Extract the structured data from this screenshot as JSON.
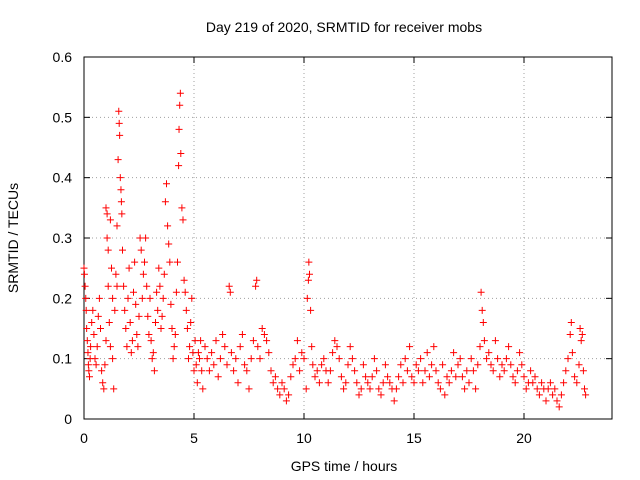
{
  "chart_data": {
    "type": "scatter",
    "title": "Day 219 of 2020, SRMTID for receiver mobs",
    "xlabel": "GPS time / hours",
    "ylabel": "SRMTID / TECUs",
    "xlim": [
      0,
      24
    ],
    "ylim": [
      0,
      0.6
    ],
    "x_ticks": [
      0,
      5,
      10,
      15,
      20
    ],
    "y_ticks": [
      0,
      0.1,
      0.2,
      0.3,
      0.4,
      0.5,
      0.6
    ],
    "x_tick_labels": [
      "0",
      "5",
      "10",
      "15",
      "20"
    ],
    "y_tick_labels": [
      "0",
      "0.1",
      "0.2",
      "0.3",
      "0.4",
      "0.5",
      "0.6"
    ],
    "grid": true,
    "marker": "+",
    "color": "#ff0000",
    "series": [
      {
        "name": "SRMTID",
        "points": [
          [
            0.0,
            0.25
          ],
          [
            0.02,
            0.24
          ],
          [
            0.05,
            0.22
          ],
          [
            0.08,
            0.2
          ],
          [
            0.1,
            0.18
          ],
          [
            0.12,
            0.15
          ],
          [
            0.15,
            0.13
          ],
          [
            0.18,
            0.11
          ],
          [
            0.2,
            0.09
          ],
          [
            0.22,
            0.08
          ],
          [
            0.25,
            0.07
          ],
          [
            0.28,
            0.1
          ],
          [
            0.3,
            0.12
          ],
          [
            0.35,
            0.16
          ],
          [
            0.4,
            0.18
          ],
          [
            0.45,
            0.14
          ],
          [
            0.5,
            0.1
          ],
          [
            0.55,
            0.09
          ],
          [
            0.6,
            0.12
          ],
          [
            0.65,
            0.17
          ],
          [
            0.7,
            0.2
          ],
          [
            0.75,
            0.15
          ],
          [
            0.8,
            0.08
          ],
          [
            0.85,
            0.06
          ],
          [
            0.9,
            0.05
          ],
          [
            0.95,
            0.09
          ],
          [
            1.0,
            0.13
          ],
          [
            1.0,
            0.35
          ],
          [
            1.05,
            0.34
          ],
          [
            1.05,
            0.3
          ],
          [
            1.1,
            0.28
          ],
          [
            1.1,
            0.22
          ],
          [
            1.15,
            0.16
          ],
          [
            1.2,
            0.12
          ],
          [
            1.2,
            0.33
          ],
          [
            1.25,
            0.25
          ],
          [
            1.3,
            0.2
          ],
          [
            1.3,
            0.1
          ],
          [
            1.35,
            0.05
          ],
          [
            1.4,
            0.18
          ],
          [
            1.45,
            0.24
          ],
          [
            1.5,
            0.32
          ],
          [
            1.5,
            0.22
          ],
          [
            1.55,
            0.43
          ],
          [
            1.58,
            0.51
          ],
          [
            1.6,
            0.49
          ],
          [
            1.62,
            0.47
          ],
          [
            1.65,
            0.4
          ],
          [
            1.68,
            0.38
          ],
          [
            1.7,
            0.36
          ],
          [
            1.72,
            0.34
          ],
          [
            1.75,
            0.28
          ],
          [
            1.8,
            0.22
          ],
          [
            1.85,
            0.18
          ],
          [
            1.9,
            0.15
          ],
          [
            1.95,
            0.12
          ],
          [
            2.0,
            0.2
          ],
          [
            2.05,
            0.25
          ],
          [
            2.1,
            0.16
          ],
          [
            2.15,
            0.11
          ],
          [
            2.2,
            0.13
          ],
          [
            2.25,
            0.21
          ],
          [
            2.3,
            0.26
          ],
          [
            2.35,
            0.19
          ],
          [
            2.4,
            0.14
          ],
          [
            2.45,
            0.12
          ],
          [
            2.5,
            0.17
          ],
          [
            2.55,
            0.3
          ],
          [
            2.6,
            0.28
          ],
          [
            2.65,
            0.2
          ],
          [
            2.7,
            0.24
          ],
          [
            2.75,
            0.26
          ],
          [
            2.8,
            0.3
          ],
          [
            2.85,
            0.22
          ],
          [
            2.9,
            0.17
          ],
          [
            2.95,
            0.14
          ],
          [
            3.0,
            0.2
          ],
          [
            3.05,
            0.13
          ],
          [
            3.1,
            0.1
          ],
          [
            3.15,
            0.11
          ],
          [
            3.2,
            0.08
          ],
          [
            3.25,
            0.16
          ],
          [
            3.3,
            0.21
          ],
          [
            3.35,
            0.18
          ],
          [
            3.4,
            0.25
          ],
          [
            3.45,
            0.22
          ],
          [
            3.5,
            0.15
          ],
          [
            3.55,
            0.17
          ],
          [
            3.6,
            0.2
          ],
          [
            3.65,
            0.24
          ],
          [
            3.7,
            0.36
          ],
          [
            3.75,
            0.39
          ],
          [
            3.8,
            0.32
          ],
          [
            3.85,
            0.29
          ],
          [
            3.9,
            0.26
          ],
          [
            3.95,
            0.19
          ],
          [
            4.0,
            0.15
          ],
          [
            4.05,
            0.1
          ],
          [
            4.1,
            0.12
          ],
          [
            4.15,
            0.14
          ],
          [
            4.2,
            0.21
          ],
          [
            4.25,
            0.26
          ],
          [
            4.3,
            0.42
          ],
          [
            4.32,
            0.48
          ],
          [
            4.35,
            0.52
          ],
          [
            4.38,
            0.54
          ],
          [
            4.4,
            0.44
          ],
          [
            4.45,
            0.35
          ],
          [
            4.5,
            0.33
          ],
          [
            4.55,
            0.23
          ],
          [
            4.6,
            0.21
          ],
          [
            4.65,
            0.18
          ],
          [
            4.7,
            0.15
          ],
          [
            4.75,
            0.1
          ],
          [
            4.8,
            0.12
          ],
          [
            4.85,
            0.16
          ],
          [
            4.9,
            0.2
          ],
          [
            4.95,
            0.11
          ],
          [
            5.0,
            0.08
          ],
          [
            5.05,
            0.13
          ],
          [
            5.1,
            0.09
          ],
          [
            5.15,
            0.06
          ],
          [
            5.2,
            0.11
          ],
          [
            5.25,
            0.1
          ],
          [
            5.3,
            0.13
          ],
          [
            5.35,
            0.08
          ],
          [
            5.4,
            0.05
          ],
          [
            5.5,
            0.12
          ],
          [
            5.6,
            0.1
          ],
          [
            5.7,
            0.08
          ],
          [
            5.8,
            0.11
          ],
          [
            5.9,
            0.09
          ],
          [
            6.0,
            0.13
          ],
          [
            6.1,
            0.07
          ],
          [
            6.2,
            0.1
          ],
          [
            6.3,
            0.14
          ],
          [
            6.4,
            0.12
          ],
          [
            6.5,
            0.09
          ],
          [
            6.6,
            0.22
          ],
          [
            6.65,
            0.21
          ],
          [
            6.7,
            0.11
          ],
          [
            6.8,
            0.08
          ],
          [
            6.9,
            0.1
          ],
          [
            7.0,
            0.06
          ],
          [
            7.1,
            0.12
          ],
          [
            7.2,
            0.14
          ],
          [
            7.3,
            0.09
          ],
          [
            7.4,
            0.08
          ],
          [
            7.5,
            0.05
          ],
          [
            7.6,
            0.1
          ],
          [
            7.7,
            0.13
          ],
          [
            7.8,
            0.22
          ],
          [
            7.85,
            0.23
          ],
          [
            7.9,
            0.12
          ],
          [
            8.0,
            0.1
          ],
          [
            8.1,
            0.15
          ],
          [
            8.2,
            0.14
          ],
          [
            8.3,
            0.13
          ],
          [
            8.4,
            0.11
          ],
          [
            8.5,
            0.08
          ],
          [
            8.6,
            0.06
          ],
          [
            8.7,
            0.07
          ],
          [
            8.8,
            0.05
          ],
          [
            8.9,
            0.04
          ],
          [
            9.0,
            0.06
          ],
          [
            9.1,
            0.05
          ],
          [
            9.2,
            0.03
          ],
          [
            9.3,
            0.04
          ],
          [
            9.4,
            0.07
          ],
          [
            9.5,
            0.09
          ],
          [
            9.6,
            0.1
          ],
          [
            9.7,
            0.13
          ],
          [
            9.8,
            0.08
          ],
          [
            9.9,
            0.11
          ],
          [
            10.0,
            0.1
          ],
          [
            10.1,
            0.05
          ],
          [
            10.15,
            0.2
          ],
          [
            10.2,
            0.23
          ],
          [
            10.22,
            0.26
          ],
          [
            10.25,
            0.24
          ],
          [
            10.3,
            0.18
          ],
          [
            10.35,
            0.12
          ],
          [
            10.4,
            0.09
          ],
          [
            10.5,
            0.07
          ],
          [
            10.6,
            0.08
          ],
          [
            10.7,
            0.06
          ],
          [
            10.8,
            0.09
          ],
          [
            10.9,
            0.1
          ],
          [
            11.0,
            0.08
          ],
          [
            11.1,
            0.06
          ],
          [
            11.2,
            0.08
          ],
          [
            11.3,
            0.11
          ],
          [
            11.4,
            0.13
          ],
          [
            11.5,
            0.12
          ],
          [
            11.6,
            0.1
          ],
          [
            11.7,
            0.07
          ],
          [
            11.8,
            0.05
          ],
          [
            11.9,
            0.06
          ],
          [
            12.0,
            0.09
          ],
          [
            12.1,
            0.12
          ],
          [
            12.2,
            0.1
          ],
          [
            12.3,
            0.08
          ],
          [
            12.4,
            0.06
          ],
          [
            12.5,
            0.04
          ],
          [
            12.6,
            0.05
          ],
          [
            12.7,
            0.09
          ],
          [
            12.8,
            0.07
          ],
          [
            12.9,
            0.06
          ],
          [
            13.0,
            0.05
          ],
          [
            13.1,
            0.07
          ],
          [
            13.2,
            0.1
          ],
          [
            13.3,
            0.08
          ],
          [
            13.4,
            0.05
          ],
          [
            13.5,
            0.04
          ],
          [
            13.6,
            0.06
          ],
          [
            13.7,
            0.09
          ],
          [
            13.8,
            0.07
          ],
          [
            13.9,
            0.06
          ],
          [
            14.0,
            0.05
          ],
          [
            14.1,
            0.03
          ],
          [
            14.2,
            0.05
          ],
          [
            14.3,
            0.07
          ],
          [
            14.4,
            0.09
          ],
          [
            14.5,
            0.06
          ],
          [
            14.6,
            0.1
          ],
          [
            14.7,
            0.08
          ],
          [
            14.8,
            0.12
          ],
          [
            14.9,
            0.07
          ],
          [
            15.0,
            0.06
          ],
          [
            15.1,
            0.09
          ],
          [
            15.2,
            0.08
          ],
          [
            15.3,
            0.1
          ],
          [
            15.4,
            0.06
          ],
          [
            15.5,
            0.08
          ],
          [
            15.6,
            0.11
          ],
          [
            15.7,
            0.07
          ],
          [
            15.8,
            0.09
          ],
          [
            15.9,
            0.12
          ],
          [
            16.0,
            0.08
          ],
          [
            16.1,
            0.06
          ],
          [
            16.2,
            0.05
          ],
          [
            16.3,
            0.09
          ],
          [
            16.4,
            0.04
          ],
          [
            16.5,
            0.07
          ],
          [
            16.6,
            0.06
          ],
          [
            16.7,
            0.08
          ],
          [
            16.8,
            0.11
          ],
          [
            16.9,
            0.07
          ],
          [
            17.0,
            0.09
          ],
          [
            17.1,
            0.1
          ],
          [
            17.2,
            0.07
          ],
          [
            17.3,
            0.05
          ],
          [
            17.4,
            0.08
          ],
          [
            17.5,
            0.06
          ],
          [
            17.6,
            0.1
          ],
          [
            17.7,
            0.08
          ],
          [
            17.8,
            0.05
          ],
          [
            17.9,
            0.09
          ],
          [
            18.0,
            0.12
          ],
          [
            18.05,
            0.21
          ],
          [
            18.1,
            0.18
          ],
          [
            18.15,
            0.16
          ],
          [
            18.2,
            0.13
          ],
          [
            18.3,
            0.1
          ],
          [
            18.4,
            0.11
          ],
          [
            18.5,
            0.09
          ],
          [
            18.6,
            0.08
          ],
          [
            18.7,
            0.13
          ],
          [
            18.8,
            0.1
          ],
          [
            18.9,
            0.07
          ],
          [
            19.0,
            0.09
          ],
          [
            19.1,
            0.08
          ],
          [
            19.2,
            0.1
          ],
          [
            19.3,
            0.12
          ],
          [
            19.4,
            0.09
          ],
          [
            19.5,
            0.07
          ],
          [
            19.6,
            0.06
          ],
          [
            19.7,
            0.08
          ],
          [
            19.8,
            0.11
          ],
          [
            19.9,
            0.09
          ],
          [
            20.0,
            0.07
          ],
          [
            20.1,
            0.05
          ],
          [
            20.2,
            0.06
          ],
          [
            20.3,
            0.08
          ],
          [
            20.4,
            0.06
          ],
          [
            20.5,
            0.07
          ],
          [
            20.6,
            0.05
          ],
          [
            20.7,
            0.04
          ],
          [
            20.8,
            0.06
          ],
          [
            20.9,
            0.05
          ],
          [
            21.0,
            0.03
          ],
          [
            21.1,
            0.05
          ],
          [
            21.2,
            0.06
          ],
          [
            21.3,
            0.04
          ],
          [
            21.4,
            0.05
          ],
          [
            21.5,
            0.03
          ],
          [
            21.6,
            0.02
          ],
          [
            21.7,
            0.04
          ],
          [
            21.8,
            0.06
          ],
          [
            21.9,
            0.08
          ],
          [
            22.0,
            0.1
          ],
          [
            22.1,
            0.14
          ],
          [
            22.15,
            0.16
          ],
          [
            22.2,
            0.11
          ],
          [
            22.3,
            0.07
          ],
          [
            22.4,
            0.06
          ],
          [
            22.5,
            0.09
          ],
          [
            22.55,
            0.15
          ],
          [
            22.6,
            0.13
          ],
          [
            22.65,
            0.14
          ],
          [
            22.7,
            0.08
          ],
          [
            22.75,
            0.05
          ],
          [
            22.8,
            0.04
          ]
        ]
      }
    ]
  }
}
